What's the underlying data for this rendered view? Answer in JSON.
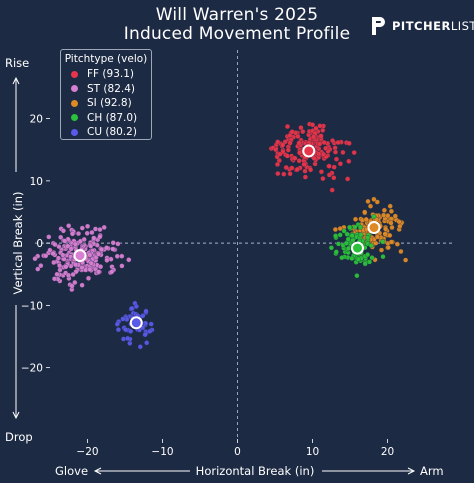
{
  "header": {
    "title_line1": "Will Warren's 2025",
    "title_line2": "Induced Movement Profile",
    "logo_bold": "PITCHER",
    "logo_light": "LIST"
  },
  "legend": {
    "title": "Pitchtype (velo)",
    "items": [
      {
        "label": "FF (93.1)",
        "color": "#e8354a"
      },
      {
        "label": "ST (82.4)",
        "color": "#d77fd2"
      },
      {
        "label": "SI (92.8)",
        "color": "#e08a26"
      },
      {
        "label": "CH (87.0)",
        "color": "#2cc13a"
      },
      {
        "label": "CU (80.2)",
        "color": "#5a5ae8"
      }
    ]
  },
  "labels": {
    "rise": "Rise",
    "drop": "Drop",
    "glove": "Glove",
    "arm": "Arm",
    "xlabel": "Horizontal Break (in)",
    "ylabel": "Vertical Break (in)"
  },
  "chart_data": {
    "type": "scatter",
    "title": "Will Warren's 2025 Induced Movement Profile",
    "xlabel": "Horizontal Break (in)",
    "ylabel": "Vertical Break (in)",
    "xlim": [
      -25,
      29
    ],
    "ylim": [
      -26,
      27
    ],
    "x_ticks": [
      -20,
      -10,
      0,
      10,
      20
    ],
    "y_ticks": [
      -20,
      -10,
      0,
      10,
      20
    ],
    "grid": false,
    "reference_lines": {
      "x": 0,
      "y": 0,
      "style": "dashed"
    },
    "legend_position": "top-left",
    "series": [
      {
        "name": "FF (93.1)",
        "color": "#e8354a",
        "mean": [
          9.5,
          14.8
        ],
        "spread": [
          3.4,
          2.6
        ],
        "count": 190
      },
      {
        "name": "ST (82.4)",
        "color": "#d77fd2",
        "mean": [
          -21.0,
          -2.0
        ],
        "spread": [
          3.4,
          3.2
        ],
        "count": 220
      },
      {
        "name": "SI (92.8)",
        "color": "#e08a26",
        "mean": [
          18.2,
          2.5
        ],
        "spread": [
          2.6,
          2.9
        ],
        "count": 130
      },
      {
        "name": "CH (87.0)",
        "color": "#2cc13a",
        "mean": [
          16.0,
          -0.8
        ],
        "spread": [
          2.2,
          2.6
        ],
        "count": 90
      },
      {
        "name": "CU (80.2)",
        "color": "#5a5ae8",
        "mean": [
          -13.5,
          -12.8
        ],
        "spread": [
          2.0,
          2.3
        ],
        "count": 55
      }
    ]
  }
}
